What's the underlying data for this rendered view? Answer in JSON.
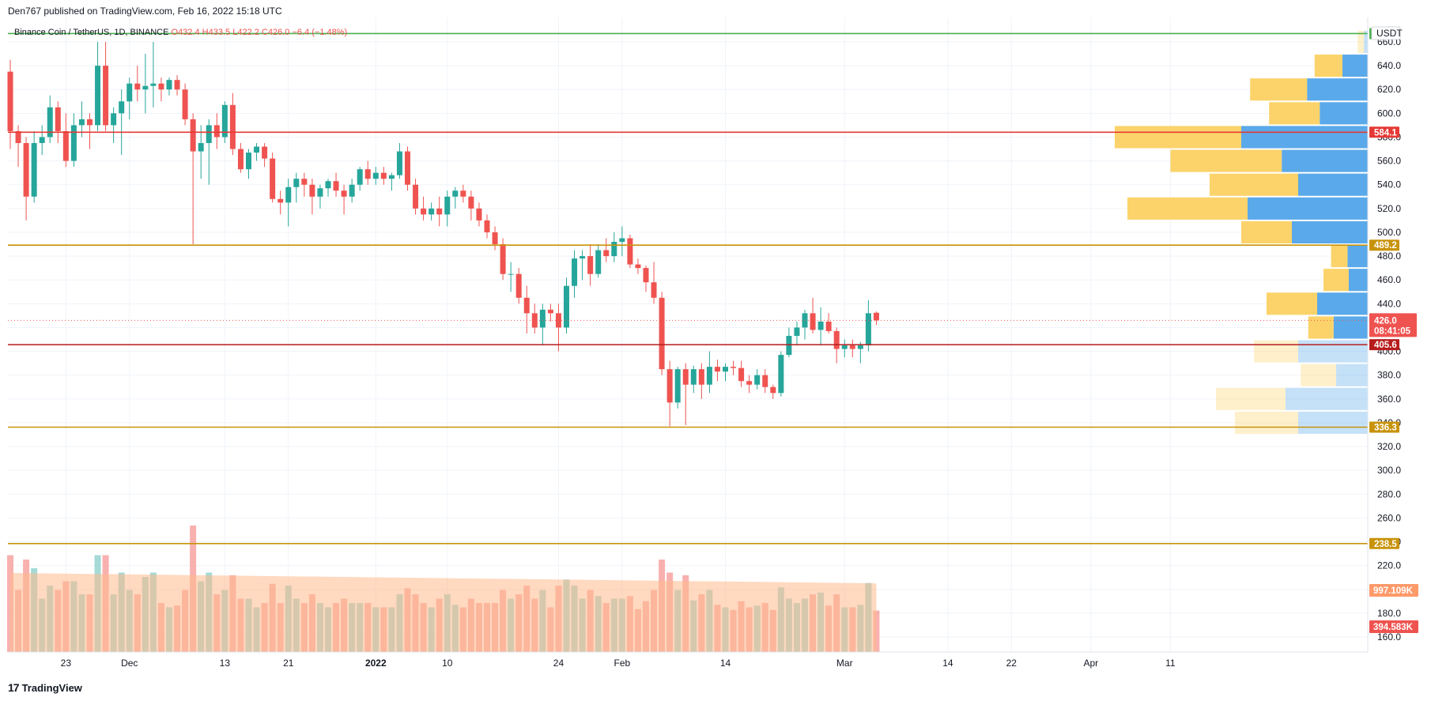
{
  "header": {
    "credit": "Den767 published on TradingView.com, Feb 16, 2022 15:18 UTC",
    "symbol": "Binance Coin / TetherUS, 1D, BINANCE",
    "ohlc": {
      "o": "O432.4",
      "h": "H433.5",
      "l": "L422.2",
      "c": "C426.0",
      "chg": "−6.4 (−1.48%)"
    }
  },
  "footer": {
    "brand": "TradingView",
    "logo_glyph": "17"
  },
  "currency_badge": "USDT",
  "colors": {
    "up": "#26a69a",
    "down": "#ef5350",
    "vol_up": "#9bd6d1",
    "vol_down": "#f7a8a6",
    "vol_ma": "#ffb98c",
    "vp_yellow": "#fbd36a",
    "vp_blue": "#5aa9ea",
    "line_green": "#4caf50",
    "line_red": "#e53935",
    "line_gold": "#c8930a",
    "line_darkred": "#b71c1c"
  },
  "chart_data": {
    "type": "candlestick",
    "symbol": "Binance Coin / TetherUS, 1D, BINANCE",
    "y_ticks": [
      "660.0",
      "640.0",
      "620.0",
      "600.0",
      "580.0",
      "560.0",
      "540.0",
      "520.0",
      "500.0",
      "480.0",
      "460.0",
      "440.0",
      "420.0",
      "400.0",
      "380.0",
      "360.0",
      "340.0",
      "320.0",
      "300.0",
      "280.0",
      "260.0",
      "240.0",
      "220.0",
      "200.0",
      "180.0",
      "160.0"
    ],
    "ylim": [
      152,
      665
    ],
    "x_ticks": [
      {
        "label": "23",
        "date": "2021-11-23",
        "bold": false
      },
      {
        "label": "Dec",
        "date": "2021-12-01",
        "bold": false
      },
      {
        "label": "13",
        "date": "2021-12-13",
        "bold": false
      },
      {
        "label": "21",
        "date": "2021-12-21",
        "bold": false
      },
      {
        "label": "2022",
        "date": "2022-01-01",
        "bold": true
      },
      {
        "label": "10",
        "date": "2022-01-10",
        "bold": false
      },
      {
        "label": "24",
        "date": "2022-01-24",
        "bold": false
      },
      {
        "label": "Feb",
        "date": "2022-02-01",
        "bold": false
      },
      {
        "label": "14",
        "date": "2022-02-14",
        "bold": false
      },
      {
        "label": "Mar",
        "date": "2022-03-01",
        "bold": false
      },
      {
        "label": "14",
        "date": "2022-03-14",
        "bold": false
      },
      {
        "label": "22",
        "date": "2022-03-22",
        "bold": false
      },
      {
        "label": "Apr",
        "date": "2022-04-01",
        "bold": false
      },
      {
        "label": "11",
        "date": "2022-04-11",
        "bold": false
      }
    ],
    "candles": [
      {
        "date": "2021-11-16",
        "o": 635,
        "h": 645,
        "l": 570,
        "c": 585
      },
      {
        "date": "2021-11-17",
        "o": 585,
        "h": 590,
        "l": 555,
        "c": 575
      },
      {
        "date": "2021-11-18",
        "o": 575,
        "h": 580,
        "l": 510,
        "c": 530
      },
      {
        "date": "2021-11-19",
        "o": 530,
        "h": 585,
        "l": 525,
        "c": 575
      },
      {
        "date": "2021-11-20",
        "o": 575,
        "h": 590,
        "l": 565,
        "c": 580
      },
      {
        "date": "2021-11-21",
        "o": 580,
        "h": 615,
        "l": 575,
        "c": 605
      },
      {
        "date": "2021-11-22",
        "o": 605,
        "h": 610,
        "l": 575,
        "c": 585
      },
      {
        "date": "2021-11-23",
        "o": 585,
        "h": 600,
        "l": 555,
        "c": 560
      },
      {
        "date": "2021-11-24",
        "o": 560,
        "h": 600,
        "l": 555,
        "c": 590
      },
      {
        "date": "2021-11-25",
        "o": 590,
        "h": 610,
        "l": 580,
        "c": 595
      },
      {
        "date": "2021-11-26",
        "o": 595,
        "h": 600,
        "l": 570,
        "c": 590
      },
      {
        "date": "2021-11-27",
        "o": 590,
        "h": 660,
        "l": 585,
        "c": 640
      },
      {
        "date": "2021-11-28",
        "o": 640,
        "h": 660,
        "l": 585,
        "c": 590
      },
      {
        "date": "2021-11-29",
        "o": 590,
        "h": 605,
        "l": 575,
        "c": 600
      },
      {
        "date": "2021-11-30",
        "o": 600,
        "h": 620,
        "l": 565,
        "c": 610
      },
      {
        "date": "2021-12-01",
        "o": 610,
        "h": 630,
        "l": 595,
        "c": 625
      },
      {
        "date": "2021-12-02",
        "o": 625,
        "h": 640,
        "l": 610,
        "c": 620
      },
      {
        "date": "2021-12-03",
        "o": 620,
        "h": 650,
        "l": 600,
        "c": 623
      },
      {
        "date": "2021-12-04",
        "o": 623,
        "h": 660,
        "l": 605,
        "c": 625
      },
      {
        "date": "2021-12-05",
        "o": 625,
        "h": 630,
        "l": 610,
        "c": 620
      },
      {
        "date": "2021-12-06",
        "o": 620,
        "h": 630,
        "l": 615,
        "c": 628
      },
      {
        "date": "2021-12-07",
        "o": 628,
        "h": 632,
        "l": 615,
        "c": 620
      },
      {
        "date": "2021-12-08",
        "o": 620,
        "h": 625,
        "l": 590,
        "c": 595
      },
      {
        "date": "2021-12-09",
        "o": 595,
        "h": 600,
        "l": 490,
        "c": 568
      },
      {
        "date": "2021-12-10",
        "o": 568,
        "h": 590,
        "l": 545,
        "c": 575
      },
      {
        "date": "2021-12-11",
        "o": 575,
        "h": 595,
        "l": 540,
        "c": 590
      },
      {
        "date": "2021-12-12",
        "o": 590,
        "h": 600,
        "l": 570,
        "c": 580
      },
      {
        "date": "2021-12-13",
        "o": 580,
        "h": 610,
        "l": 575,
        "c": 607
      },
      {
        "date": "2021-12-14",
        "o": 607,
        "h": 617,
        "l": 565,
        "c": 570
      },
      {
        "date": "2021-12-15",
        "o": 570,
        "h": 575,
        "l": 550,
        "c": 553
      },
      {
        "date": "2021-12-16",
        "o": 553,
        "h": 570,
        "l": 545,
        "c": 567
      },
      {
        "date": "2021-12-17",
        "o": 567,
        "h": 575,
        "l": 560,
        "c": 572
      },
      {
        "date": "2021-12-18",
        "o": 572,
        "h": 575,
        "l": 555,
        "c": 562
      },
      {
        "date": "2021-12-19",
        "o": 562,
        "h": 567,
        "l": 525,
        "c": 528
      },
      {
        "date": "2021-12-20",
        "o": 528,
        "h": 535,
        "l": 515,
        "c": 525
      },
      {
        "date": "2021-12-21",
        "o": 525,
        "h": 545,
        "l": 505,
        "c": 538
      },
      {
        "date": "2021-12-22",
        "o": 538,
        "h": 550,
        "l": 525,
        "c": 545
      },
      {
        "date": "2021-12-23",
        "o": 545,
        "h": 550,
        "l": 530,
        "c": 540
      },
      {
        "date": "2021-12-24",
        "o": 540,
        "h": 545,
        "l": 515,
        "c": 530
      },
      {
        "date": "2021-12-25",
        "o": 530,
        "h": 540,
        "l": 520,
        "c": 537
      },
      {
        "date": "2021-12-26",
        "o": 537,
        "h": 545,
        "l": 530,
        "c": 543
      },
      {
        "date": "2021-12-27",
        "o": 543,
        "h": 550,
        "l": 530,
        "c": 535
      },
      {
        "date": "2021-12-28",
        "o": 535,
        "h": 540,
        "l": 515,
        "c": 530
      },
      {
        "date": "2021-12-29",
        "o": 530,
        "h": 545,
        "l": 525,
        "c": 540
      },
      {
        "date": "2021-12-30",
        "o": 540,
        "h": 555,
        "l": 535,
        "c": 553
      },
      {
        "date": "2021-12-31",
        "o": 553,
        "h": 560,
        "l": 540,
        "c": 545
      },
      {
        "date": "2022-01-01",
        "o": 545,
        "h": 555,
        "l": 540,
        "c": 550
      },
      {
        "date": "2022-01-02",
        "o": 550,
        "h": 555,
        "l": 540,
        "c": 545
      },
      {
        "date": "2022-01-03",
        "o": 545,
        "h": 550,
        "l": 535,
        "c": 548
      },
      {
        "date": "2022-01-04",
        "o": 548,
        "h": 575,
        "l": 545,
        "c": 568
      },
      {
        "date": "2022-01-05",
        "o": 568,
        "h": 572,
        "l": 535,
        "c": 540
      },
      {
        "date": "2022-01-06",
        "o": 540,
        "h": 545,
        "l": 515,
        "c": 520
      },
      {
        "date": "2022-01-07",
        "o": 520,
        "h": 530,
        "l": 510,
        "c": 515
      },
      {
        "date": "2022-01-08",
        "o": 515,
        "h": 525,
        "l": 510,
        "c": 520
      },
      {
        "date": "2022-01-09",
        "o": 520,
        "h": 530,
        "l": 505,
        "c": 515
      },
      {
        "date": "2022-01-10",
        "o": 515,
        "h": 535,
        "l": 505,
        "c": 530
      },
      {
        "date": "2022-01-11",
        "o": 530,
        "h": 538,
        "l": 520,
        "c": 535
      },
      {
        "date": "2022-01-12",
        "o": 535,
        "h": 540,
        "l": 525,
        "c": 530
      },
      {
        "date": "2022-01-13",
        "o": 530,
        "h": 535,
        "l": 510,
        "c": 520
      },
      {
        "date": "2022-01-14",
        "o": 520,
        "h": 525,
        "l": 505,
        "c": 510
      },
      {
        "date": "2022-01-15",
        "o": 510,
        "h": 515,
        "l": 495,
        "c": 500
      },
      {
        "date": "2022-01-16",
        "o": 500,
        "h": 505,
        "l": 485,
        "c": 490
      },
      {
        "date": "2022-01-17",
        "o": 490,
        "h": 495,
        "l": 460,
        "c": 465
      },
      {
        "date": "2022-01-18",
        "o": 465,
        "h": 475,
        "l": 450,
        "c": 465
      },
      {
        "date": "2022-01-19",
        "o": 465,
        "h": 470,
        "l": 440,
        "c": 445
      },
      {
        "date": "2022-01-20",
        "o": 445,
        "h": 455,
        "l": 415,
        "c": 432
      },
      {
        "date": "2022-01-21",
        "o": 432,
        "h": 440,
        "l": 415,
        "c": 420
      },
      {
        "date": "2022-01-22",
        "o": 420,
        "h": 440,
        "l": 405,
        "c": 435
      },
      {
        "date": "2022-01-23",
        "o": 435,
        "h": 440,
        "l": 425,
        "c": 432
      },
      {
        "date": "2022-01-24",
        "o": 432,
        "h": 440,
        "l": 400,
        "c": 420
      },
      {
        "date": "2022-01-25",
        "o": 420,
        "h": 462,
        "l": 415,
        "c": 455
      },
      {
        "date": "2022-01-26",
        "o": 455,
        "h": 485,
        "l": 445,
        "c": 478
      },
      {
        "date": "2022-01-27",
        "o": 478,
        "h": 485,
        "l": 460,
        "c": 480
      },
      {
        "date": "2022-01-28",
        "o": 480,
        "h": 490,
        "l": 455,
        "c": 465
      },
      {
        "date": "2022-01-29",
        "o": 465,
        "h": 490,
        "l": 462,
        "c": 485
      },
      {
        "date": "2022-01-30",
        "o": 485,
        "h": 495,
        "l": 475,
        "c": 480
      },
      {
        "date": "2022-01-31",
        "o": 480,
        "h": 500,
        "l": 475,
        "c": 492
      },
      {
        "date": "2022-02-01",
        "o": 492,
        "h": 505,
        "l": 480,
        "c": 495
      },
      {
        "date": "2022-02-02",
        "o": 495,
        "h": 498,
        "l": 470,
        "c": 473
      },
      {
        "date": "2022-02-03",
        "o": 473,
        "h": 478,
        "l": 465,
        "c": 470
      },
      {
        "date": "2022-02-04",
        "o": 470,
        "h": 472,
        "l": 450,
        "c": 458
      },
      {
        "date": "2022-02-05",
        "o": 458,
        "h": 475,
        "l": 440,
        "c": 445
      },
      {
        "date": "2022-02-06",
        "o": 445,
        "h": 450,
        "l": 380,
        "c": 385
      },
      {
        "date": "2022-02-07",
        "o": 385,
        "h": 392,
        "l": 337,
        "c": 357
      },
      {
        "date": "2022-02-08",
        "o": 357,
        "h": 387,
        "l": 352,
        "c": 385
      },
      {
        "date": "2022-02-09",
        "o": 385,
        "h": 390,
        "l": 338,
        "c": 372
      },
      {
        "date": "2022-02-10",
        "o": 372,
        "h": 388,
        "l": 365,
        "c": 385
      },
      {
        "date": "2022-02-11",
        "o": 385,
        "h": 390,
        "l": 360,
        "c": 372
      },
      {
        "date": "2022-02-12",
        "o": 372,
        "h": 400,
        "l": 365,
        "c": 387
      },
      {
        "date": "2022-02-13",
        "o": 387,
        "h": 393,
        "l": 375,
        "c": 383
      },
      {
        "date": "2022-02-14",
        "o": 383,
        "h": 390,
        "l": 375,
        "c": 387
      },
      {
        "date": "2022-02-15",
        "o": 387,
        "h": 392,
        "l": 380,
        "c": 386
      },
      {
        "date": "2022-02-16",
        "o": 386,
        "h": 392,
        "l": 370,
        "c": 375
      },
      {
        "date": "2022-02-17",
        "o": 375,
        "h": 380,
        "l": 365,
        "c": 372
      },
      {
        "date": "2022-02-18",
        "o": 372,
        "h": 385,
        "l": 368,
        "c": 380
      },
      {
        "date": "2022-02-19",
        "o": 380,
        "h": 385,
        "l": 365,
        "c": 370
      },
      {
        "date": "2022-02-20",
        "o": 370,
        "h": 372,
        "l": 360,
        "c": 365
      },
      {
        "date": "2022-02-21",
        "o": 365,
        "h": 400,
        "l": 362,
        "c": 397
      },
      {
        "date": "2022-02-22",
        "o": 397,
        "h": 420,
        "l": 395,
        "c": 413
      },
      {
        "date": "2022-02-23",
        "o": 413,
        "h": 425,
        "l": 405,
        "c": 420
      },
      {
        "date": "2022-02-24",
        "o": 420,
        "h": 435,
        "l": 410,
        "c": 432
      },
      {
        "date": "2022-02-25",
        "o": 432,
        "h": 445,
        "l": 415,
        "c": 418
      },
      {
        "date": "2022-02-26",
        "o": 418,
        "h": 437,
        "l": 405,
        "c": 425
      },
      {
        "date": "2022-02-27",
        "o": 425,
        "h": 432,
        "l": 415,
        "c": 417
      },
      {
        "date": "2022-02-28",
        "o": 417,
        "h": 420,
        "l": 390,
        "c": 402
      },
      {
        "date": "2022-03-01",
        "o": 402,
        "h": 410,
        "l": 395,
        "c": 405
      },
      {
        "date": "2022-03-02",
        "o": 405,
        "h": 410,
        "l": 395,
        "c": 402
      },
      {
        "date": "2022-03-03",
        "o": 402,
        "h": 408,
        "l": 390,
        "c": 405
      },
      {
        "date": "2022-03-04",
        "o": 405,
        "h": 443,
        "l": 400,
        "c": 432
      },
      {
        "date": "2022-03-05",
        "o": 432.4,
        "h": 433.5,
        "l": 422.2,
        "c": 426.0
      }
    ],
    "volume_bars_up_down": "matches candles",
    "volume_ma_note": "smoothed moving average overlay",
    "horizontal_levels": [
      {
        "price": 667,
        "label": "6",
        "color": "#4caf50"
      },
      {
        "price": 584.1,
        "label": "584.1",
        "color": "#e53935"
      },
      {
        "price": 489.2,
        "label": "489.2",
        "color": "#c8930a"
      },
      {
        "price": 405.6,
        "label": "405.6",
        "color": "#b71c1c"
      },
      {
        "price": 336.3,
        "label": "336.3",
        "color": "#c8930a"
      },
      {
        "price": 238.5,
        "label": "238.5",
        "color": "#c8930a"
      }
    ],
    "last_price": {
      "price": 426.0,
      "label": "426.0",
      "countdown": "08:41:05"
    },
    "volume_labels": [
      {
        "label": "997.109K",
        "color": "#ff9a6a"
      },
      {
        "label": "394.583K",
        "color": "#ef5350"
      }
    ],
    "volume_profile": [
      {
        "price": 660,
        "up": 5,
        "down": 3,
        "faded": true
      },
      {
        "price": 640,
        "up": 22,
        "down": 20,
        "faded": false
      },
      {
        "price": 620,
        "up": 45,
        "down": 48,
        "faded": false
      },
      {
        "price": 600,
        "up": 40,
        "down": 38,
        "faded": false
      },
      {
        "price": 580,
        "up": 100,
        "down": 100,
        "faded": false
      },
      {
        "price": 560,
        "up": 88,
        "down": 68,
        "faded": false
      },
      {
        "price": 540,
        "up": 70,
        "down": 55,
        "faded": false
      },
      {
        "price": 520,
        "up": 95,
        "down": 95,
        "faded": false
      },
      {
        "price": 500,
        "up": 40,
        "down": 60,
        "faded": false
      },
      {
        "price": 480,
        "up": 13,
        "down": 16,
        "faded": false
      },
      {
        "price": 460,
        "up": 20,
        "down": 15,
        "faded": false
      },
      {
        "price": 440,
        "up": 40,
        "down": 40,
        "faded": false
      },
      {
        "price": 420,
        "up": 20,
        "down": 27,
        "faded": false
      },
      {
        "price": 400,
        "up": 35,
        "down": 55,
        "faded": true
      },
      {
        "price": 380,
        "up": 28,
        "down": 25,
        "faded": true
      },
      {
        "price": 360,
        "up": 55,
        "down": 65,
        "faded": true
      },
      {
        "price": 340,
        "up": 50,
        "down": 55,
        "faded": true
      }
    ]
  }
}
